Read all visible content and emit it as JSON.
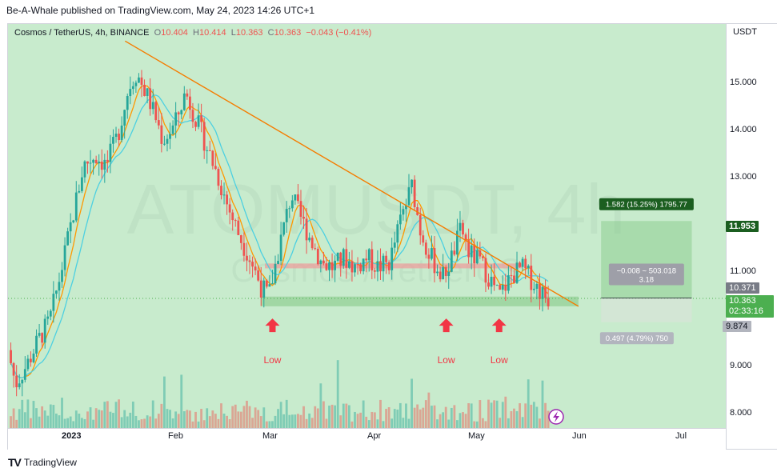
{
  "header": {
    "text": "Be-A-Whale published on TradingView.com, May 24, 2023 14:26 UTC+1"
  },
  "legend": {
    "symbol": "Cosmos / TetherUS, 4h, BINANCE",
    "o": "10.404",
    "h": "10.414",
    "l": "10.363",
    "c": "10.363",
    "change": "−0.043 (−0.41%)"
  },
  "watermark": {
    "line1": "ATOMUSDT, 4h",
    "line2": "Cosmos / TetherUS"
  },
  "axis": {
    "currency": "USDT",
    "y_ticks": [
      "15.000",
      "14.000",
      "13.000",
      "11.000",
      "9.000",
      "8.000"
    ],
    "x_ticks": [
      "2023",
      "Feb",
      "Mar",
      "Apr",
      "May",
      "Jun",
      "Jul"
    ]
  },
  "price_badges": {
    "target": "11.953",
    "current_ma": "10.371",
    "last_price": "10.363",
    "countdown": "02:33:16",
    "stop": "9.874"
  },
  "position_tool": {
    "target_label": "1.582 (15.25%) 1795.77",
    "mid_label_1": "−0.008 ~ 503.018",
    "mid_label_2": "3.18",
    "stop_label": "0.497 (4.79%) 750"
  },
  "annotations": [
    "Low",
    "Low",
    "Low"
  ],
  "footer": {
    "brand": "TradingView",
    "logo": "TV"
  },
  "colors": {
    "bull": "#26a69a",
    "bear": "#ef5350",
    "trendline": "#f57c00",
    "ma_fast": "#ff9800",
    "ma_slow": "#4dd0e1",
    "arrow": "#f23645",
    "target_badge": "#1b5e20",
    "last_price_badge": "#4caf50"
  },
  "chart_data": {
    "type": "candlestick",
    "symbol": "ATOMUSDT",
    "interval": "4h",
    "ylim": [
      7.7,
      16.0
    ],
    "x_start": "2023-01-01",
    "x_end": "2023-07-10",
    "series": [
      {
        "name": "ATOMUSDT",
        "points": [
          {
            "x": "2023-01-01",
            "y": 9.3
          },
          {
            "x": "2023-01-03",
            "y": 8.6
          },
          {
            "x": "2023-01-06",
            "y": 9.0
          },
          {
            "x": "2023-01-09",
            "y": 9.5
          },
          {
            "x": "2023-01-12",
            "y": 9.9
          },
          {
            "x": "2023-01-15",
            "y": 10.9
          },
          {
            "x": "2023-01-18",
            "y": 12.0
          },
          {
            "x": "2023-01-21",
            "y": 13.1
          },
          {
            "x": "2023-01-24",
            "y": 13.3
          },
          {
            "x": "2023-01-27",
            "y": 13.1
          },
          {
            "x": "2023-01-30",
            "y": 13.7
          },
          {
            "x": "2023-02-02",
            "y": 14.7
          },
          {
            "x": "2023-02-04",
            "y": 15.0
          },
          {
            "x": "2023-02-07",
            "y": 14.5
          },
          {
            "x": "2023-02-09",
            "y": 14.1
          },
          {
            "x": "2023-02-11",
            "y": 13.6
          },
          {
            "x": "2023-02-14",
            "y": 13.9
          },
          {
            "x": "2023-02-17",
            "y": 14.6
          },
          {
            "x": "2023-02-19",
            "y": 14.2
          },
          {
            "x": "2023-02-22",
            "y": 13.6
          },
          {
            "x": "2023-02-25",
            "y": 13.0
          },
          {
            "x": "2023-02-28",
            "y": 12.3
          },
          {
            "x": "2023-03-03",
            "y": 11.7
          },
          {
            "x": "2023-03-06",
            "y": 11.2
          },
          {
            "x": "2023-03-09",
            "y": 10.6
          },
          {
            "x": "2023-03-11",
            "y": 10.4
          },
          {
            "x": "2023-03-14",
            "y": 11.5
          },
          {
            "x": "2023-03-17",
            "y": 12.5
          },
          {
            "x": "2023-03-19",
            "y": 12.1
          },
          {
            "x": "2023-03-22",
            "y": 11.6
          },
          {
            "x": "2023-03-25",
            "y": 11.1
          },
          {
            "x": "2023-03-28",
            "y": 11.0
          },
          {
            "x": "2023-03-31",
            "y": 11.2
          },
          {
            "x": "2023-04-03",
            "y": 11.0
          },
          {
            "x": "2023-04-06",
            "y": 11.2
          },
          {
            "x": "2023-04-09",
            "y": 11.0
          },
          {
            "x": "2023-04-12",
            "y": 11.1
          },
          {
            "x": "2023-04-15",
            "y": 12.0
          },
          {
            "x": "2023-04-18",
            "y": 12.7
          },
          {
            "x": "2023-04-20",
            "y": 11.8
          },
          {
            "x": "2023-04-23",
            "y": 11.2
          },
          {
            "x": "2023-04-26",
            "y": 10.8
          },
          {
            "x": "2023-04-28",
            "y": 11.1
          },
          {
            "x": "2023-05-01",
            "y": 11.8
          },
          {
            "x": "2023-05-03",
            "y": 11.3
          },
          {
            "x": "2023-05-06",
            "y": 11.1
          },
          {
            "x": "2023-05-09",
            "y": 10.7
          },
          {
            "x": "2023-05-11",
            "y": 10.4
          },
          {
            "x": "2023-05-14",
            "y": 10.8
          },
          {
            "x": "2023-05-17",
            "y": 11.0
          },
          {
            "x": "2023-05-20",
            "y": 10.7
          },
          {
            "x": "2023-05-22",
            "y": 10.5
          },
          {
            "x": "2023-05-24",
            "y": 10.363
          }
        ]
      }
    ],
    "trendline": [
      {
        "x": "2023-02-01",
        "y": 15.65
      },
      {
        "x": "2023-06-01",
        "y": 10.2
      }
    ],
    "support_zone": {
      "from": 10.2,
      "to": 10.4,
      "x0": "2023-03-09",
      "x1": "2023-06-01"
    },
    "resistance_zone": {
      "from": 10.98,
      "to": 11.08,
      "x0": "2023-03-10",
      "x1": "2023-05-17"
    },
    "low_markers": [
      "2023-03-12",
      "2023-04-27",
      "2023-05-11"
    ],
    "position": {
      "entry": 10.371,
      "target": 11.953,
      "stop": 9.874,
      "x0": "2023-06-07",
      "x1": "2023-07-01"
    }
  }
}
